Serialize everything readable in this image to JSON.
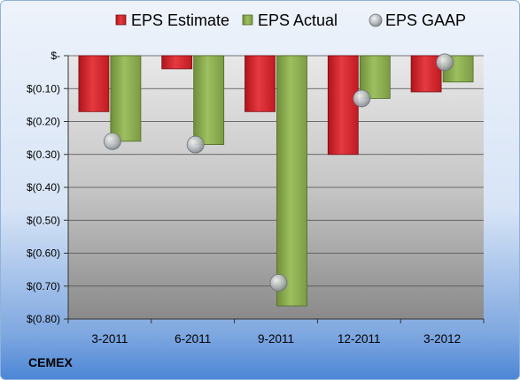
{
  "company": "CEMEX",
  "colors": {
    "estimate": "#d8202a",
    "actual": "#8aac4e",
    "gaap": "#b4b8bd"
  },
  "chart_data": {
    "type": "bar",
    "categories": [
      "3-2011",
      "6-2011",
      "9-2011",
      "12-2011",
      "3-2012"
    ],
    "series": [
      {
        "name": "EPS Estimate",
        "marker": "bar",
        "values": [
          -0.17,
          -0.04,
          -0.17,
          -0.3,
          -0.11
        ]
      },
      {
        "name": "EPS Actual",
        "marker": "bar",
        "values": [
          -0.26,
          -0.27,
          -0.76,
          -0.13,
          -0.08
        ]
      },
      {
        "name": "EPS GAAP",
        "marker": "circle",
        "values": [
          -0.26,
          -0.27,
          -0.69,
          -0.13,
          -0.02
        ]
      }
    ],
    "ylim": [
      -0.8,
      0
    ],
    "yticks": [
      0,
      -0.1,
      -0.2,
      -0.3,
      -0.4,
      -0.5,
      -0.6,
      -0.7,
      -0.8
    ],
    "ytick_labels": [
      "$-",
      "$(0.10)",
      "$(0.20)",
      "$(0.30)",
      "$(0.40)",
      "$(0.50)",
      "$(0.60)",
      "$(0.70)",
      "$(0.80)"
    ],
    "legend_position": "top",
    "grid": true
  }
}
